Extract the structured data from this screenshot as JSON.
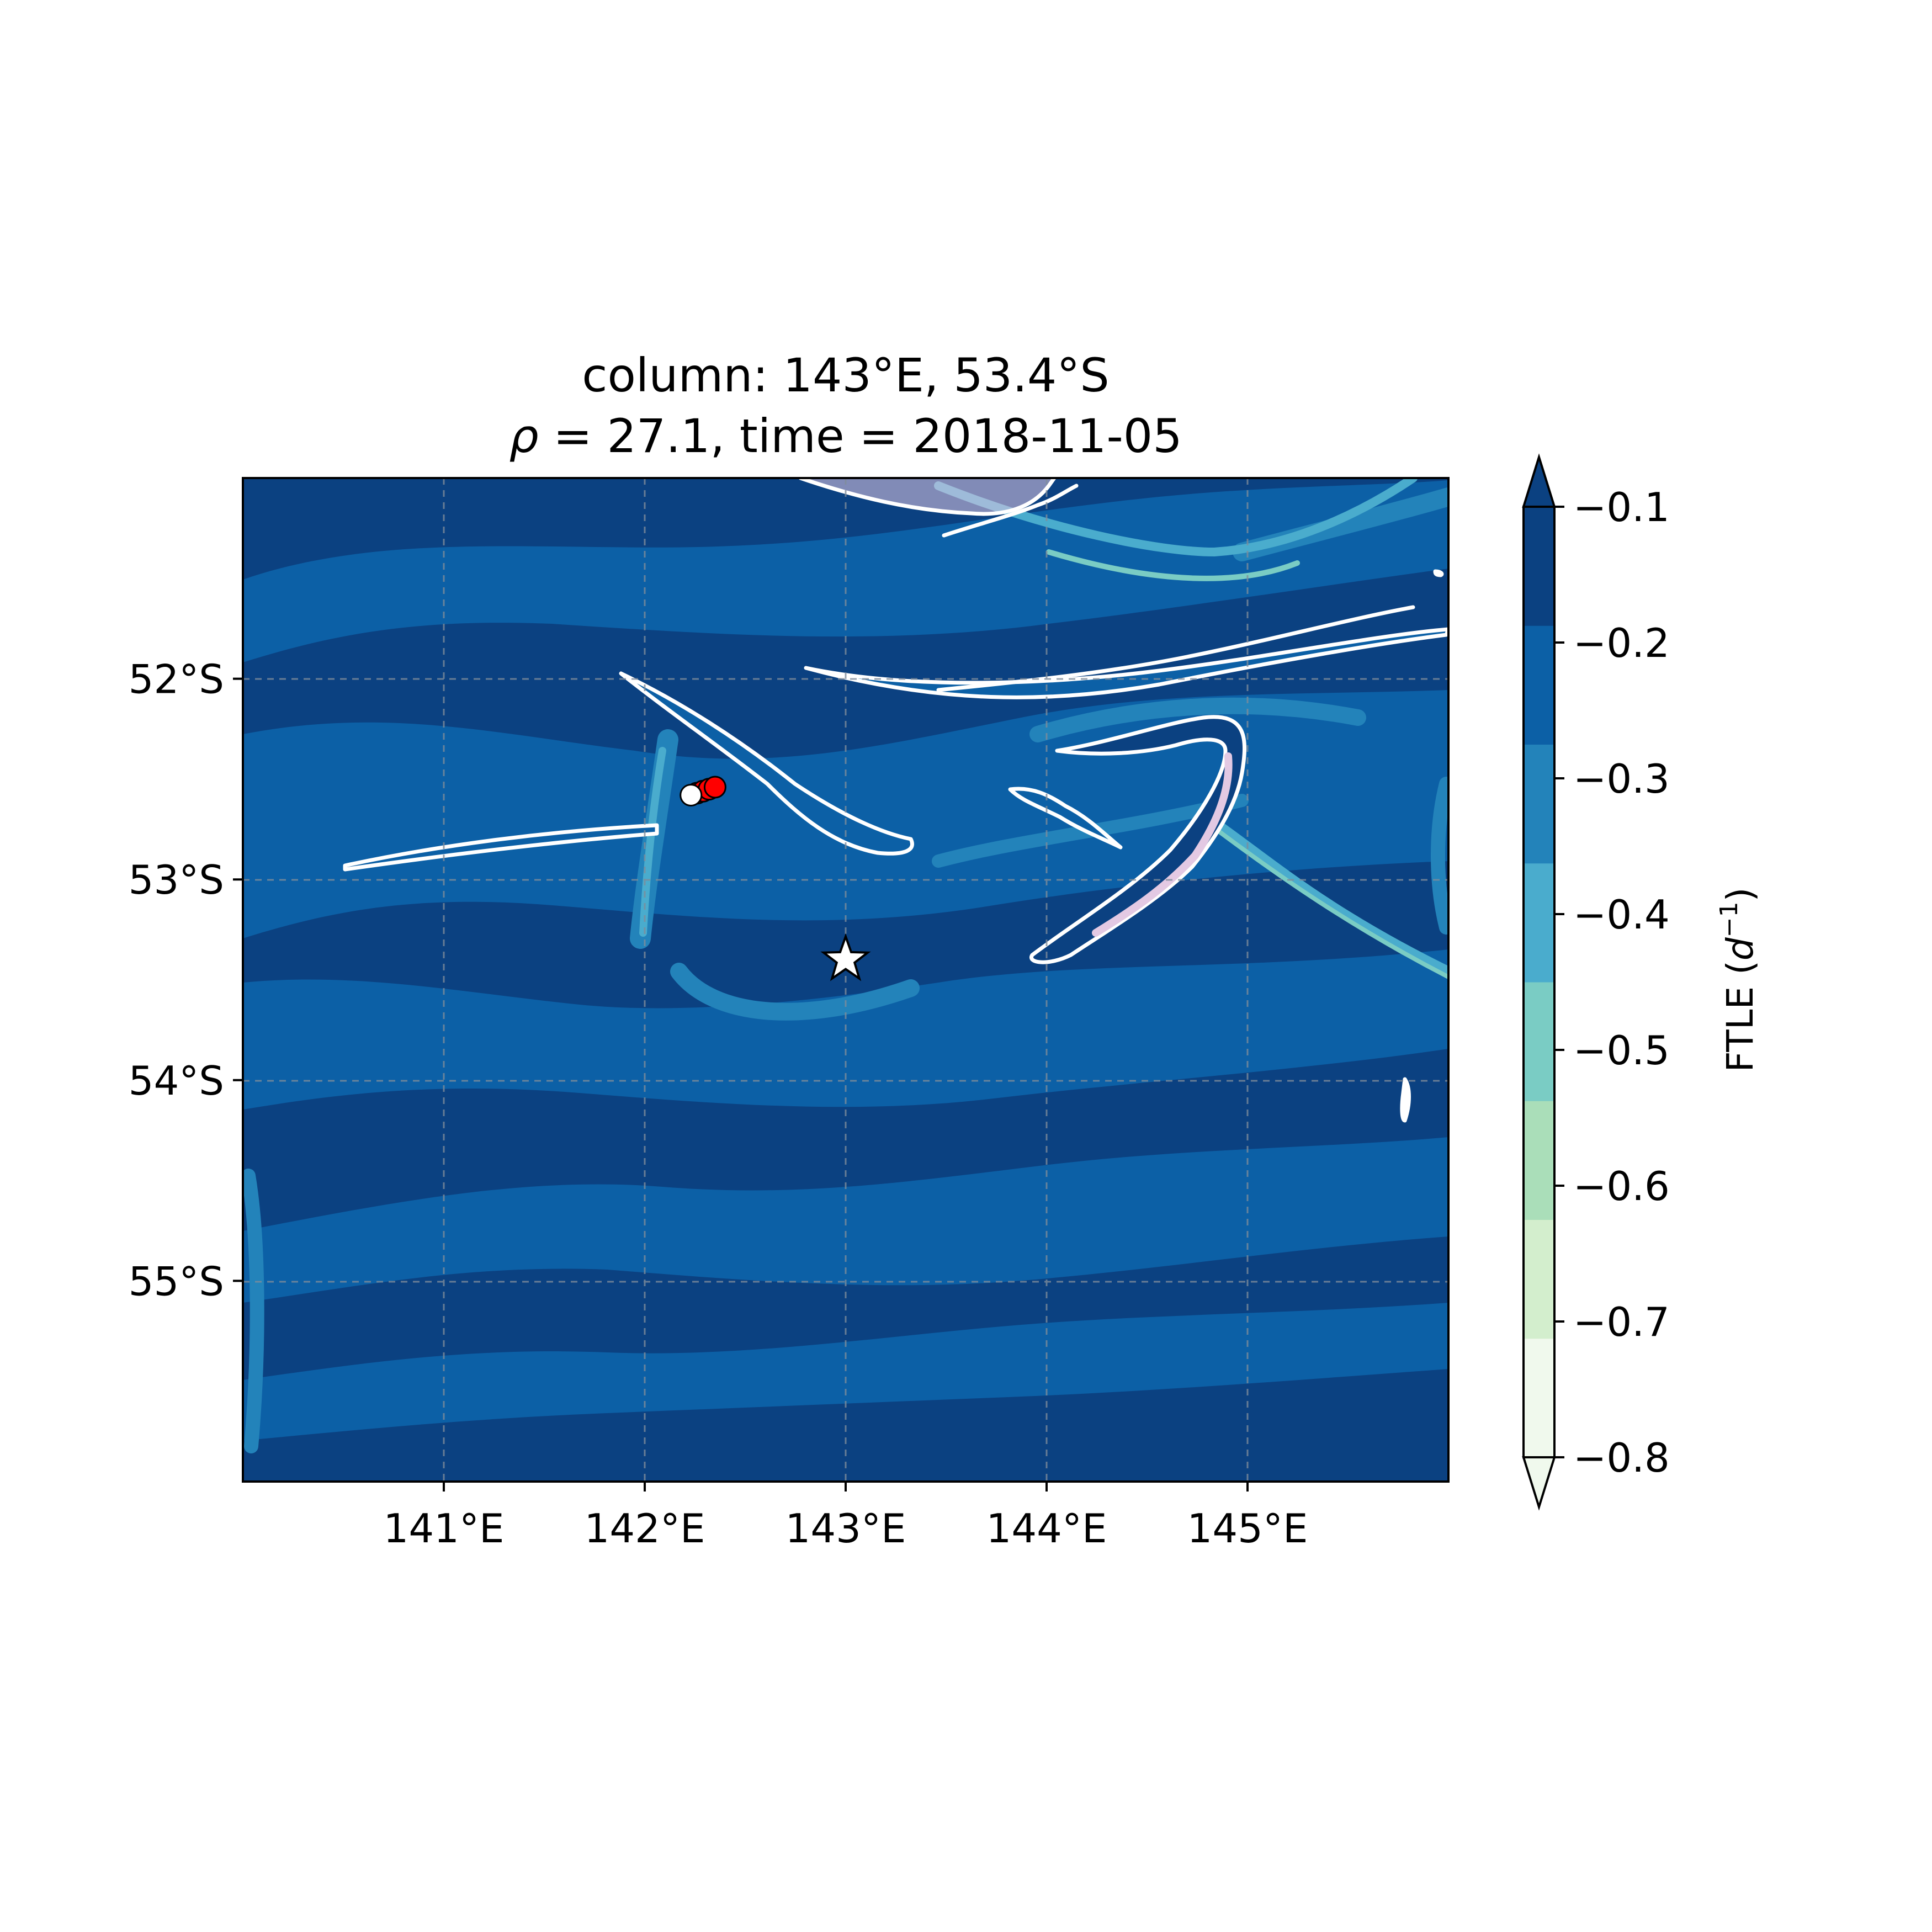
{
  "chart_data": {
    "type": "heatmap",
    "title": {
      "line1": "column: 143°E, 53.4°S",
      "line2_rho_symbol": "ρ",
      "line2_rest": " = 27.1, time = 2018-11-05"
    },
    "xlim": [
      140.0,
      146.0
    ],
    "ylim": [
      -56.0,
      -51.0
    ],
    "x_ticks": [
      {
        "value": 141,
        "label": "141°E"
      },
      {
        "value": 142,
        "label": "142°E"
      },
      {
        "value": 143,
        "label": "143°E"
      },
      {
        "value": 144,
        "label": "144°E"
      },
      {
        "value": 145,
        "label": "145°E"
      }
    ],
    "y_ticks": [
      {
        "value": -52,
        "label": "52°S"
      },
      {
        "value": -53,
        "label": "53°S"
      },
      {
        "value": -54,
        "label": "54°S"
      },
      {
        "value": -55,
        "label": "55°S"
      }
    ],
    "grid": true,
    "colorbar": {
      "label_main": "FTLE (",
      "label_sym": "d",
      "label_exp": "−1",
      "label_close": ")",
      "levels": [
        -0.8,
        -0.7,
        -0.6,
        -0.5,
        -0.4,
        -0.3,
        -0.2,
        -0.1
      ],
      "tick_labels": [
        "−0.1",
        "−0.2",
        "−0.3",
        "−0.4",
        "−0.5",
        "−0.6",
        "−0.7",
        "−0.8"
      ],
      "colors": [
        "#f0f9ed",
        "#d3eecd",
        "#aadeb9",
        "#7accc4",
        "#4aaccd",
        "#2383ba",
        "#0c60a6",
        "#0b4181"
      ],
      "extend": "both",
      "orientation": "vertical"
    },
    "markers": {
      "star": {
        "lon": 143.0,
        "lat": -53.4,
        "color": "#ffffff"
      },
      "white_point": {
        "lon": 142.23,
        "lat": -52.58,
        "color": "#ffffff"
      },
      "red_track": [
        {
          "lon": 142.26,
          "lat": -52.57
        },
        {
          "lon": 142.29,
          "lat": -52.56
        },
        {
          "lon": 142.32,
          "lat": -52.55
        },
        {
          "lon": 142.35,
          "lat": -52.54
        }
      ],
      "red_color": "#ff0000"
    },
    "contour_color": "#ffffff",
    "contour_fill_color": "#e3c9e3"
  }
}
